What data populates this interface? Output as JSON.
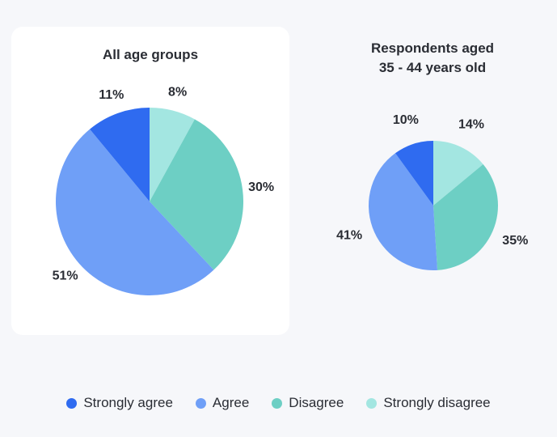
{
  "chart_data": [
    {
      "type": "pie",
      "title": "All age groups",
      "series": [
        {
          "name": "Strongly agree",
          "value": 11,
          "label": "11%"
        },
        {
          "name": "Agree",
          "value": 51,
          "label": "51%"
        },
        {
          "name": "Disagree",
          "value": 30,
          "label": "30%"
        },
        {
          "name": "Strongly disagree",
          "value": 8,
          "label": "8%"
        }
      ]
    },
    {
      "type": "pie",
      "title": "Respondents aged\n35 - 44 years old",
      "series": [
        {
          "name": "Strongly agree",
          "value": 10,
          "label": "10%"
        },
        {
          "name": "Agree",
          "value": 41,
          "label": "41%"
        },
        {
          "name": "Disagree",
          "value": 35,
          "label": "35%"
        },
        {
          "name": "Strongly disagree",
          "value": 14,
          "label": "14%"
        }
      ]
    }
  ],
  "legend": [
    {
      "label": "Strongly agree",
      "color": "#2f6bf0"
    },
    {
      "label": "Agree",
      "color": "#6f9ff7"
    },
    {
      "label": "Disagree",
      "color": "#6dcfc4"
    },
    {
      "label": "Strongly disagree",
      "color": "#a3e6e1"
    }
  ],
  "legend_position": "bottom"
}
